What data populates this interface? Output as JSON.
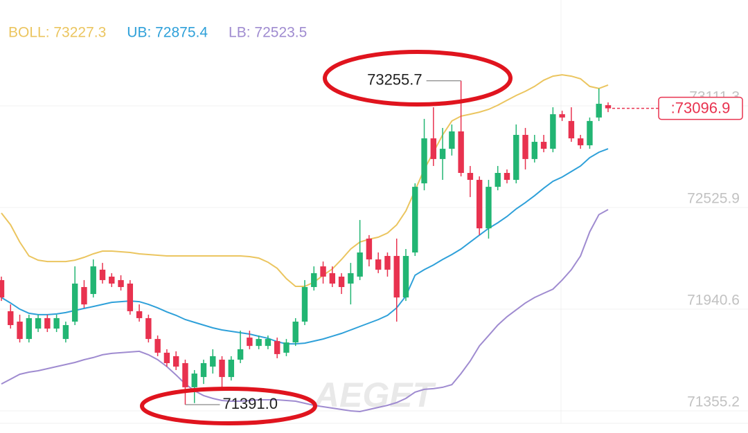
{
  "chart_data": {
    "type": "candlestick",
    "legend": [
      "BOLL: 73227.3",
      "UB: 72875.4",
      "LB: 72523.5"
    ],
    "ylim": [
      71283.5,
      73720.5
    ],
    "yticks": [
      73111.3,
      72525.9,
      71940.6,
      71355.2
    ],
    "grid": true,
    "up_color": "#22b573",
    "down_color": "#e8324f",
    "open": [
      72108,
      71929,
      71869,
      71769,
      71829,
      71889,
      71829,
      71769,
      71869,
      72068,
      72028,
      72168,
      72128,
      72108,
      72088,
      71929,
      71889,
      71769,
      71690,
      71670,
      71630,
      71491,
      71550,
      71610,
      71650,
      71550,
      71650,
      71777,
      71729,
      71729,
      71757,
      71690,
      71749,
      71869,
      72068,
      72187,
      72148,
      72128,
      72088,
      72128,
      72347,
      72227,
      72247,
      72247,
      72008,
      72267,
      72665,
      72924,
      72805,
      72864,
      72964,
      72725,
      72685,
      72406,
      72645,
      72725,
      72685,
      72944,
      72805,
      72904,
      72864,
      73063,
      73024,
      72924,
      72884,
      73044,
      73115
    ],
    "high": [
      72128,
      71968,
      71909,
      71909,
      71909,
      71909,
      71909,
      71869,
      72187,
      72108,
      72227,
      72207,
      72148,
      72136,
      72108,
      71968,
      71909,
      71789,
      71710,
      71698,
      71650,
      71590,
      71650,
      71710,
      71670,
      71670,
      71817,
      71817,
      71789,
      71789,
      71777,
      71769,
      71889,
      72108,
      72187,
      72215,
      72187,
      72148,
      72207,
      72454,
      72367,
      72267,
      72267,
      72347,
      72287,
      72665,
      73036,
      73103,
      72984,
      73004,
      73255.7,
      72765,
      72705,
      72685,
      72765,
      72745,
      73004,
      72984,
      72944,
      72944,
      73103,
      73083,
      73103,
      72944,
      73044,
      73211,
      73131
    ],
    "low": [
      71988,
      71829,
      71749,
      71749,
      71809,
      71809,
      71809,
      71749,
      71849,
      71948,
      72008,
      72088,
      72068,
      72048,
      71909,
      71869,
      71749,
      71670,
      71610,
      71590,
      71391.0,
      71400,
      71510,
      71570,
      71471,
      71530,
      71630,
      71710,
      71710,
      71710,
      71658,
      71670,
      71729,
      71849,
      72048,
      72088,
      72068,
      72028,
      71968,
      72108,
      72187,
      72148,
      72128,
      71869,
      71988,
      72247,
      72625,
      72765,
      72685,
      72825,
      72705,
      72586,
      72367,
      72347,
      72625,
      72665,
      72665,
      72745,
      72785,
      72844,
      72844,
      73024,
      72904,
      72864,
      72864,
      73024,
      73075
    ],
    "close": [
      72008,
      71849,
      71769,
      71889,
      71889,
      71829,
      71889,
      71849,
      72088,
      71968,
      72187,
      72108,
      72088,
      72068,
      71929,
      71889,
      71769,
      71690,
      71630,
      71610,
      71491,
      71570,
      71630,
      71670,
      71550,
      71650,
      71710,
      71729,
      71769,
      71769,
      71682,
      71749,
      71869,
      72068,
      72148,
      72128,
      72088,
      72068,
      72148,
      72267,
      72227,
      72168,
      72168,
      72008,
      72247,
      72645,
      72924,
      72805,
      72864,
      72964,
      72725,
      72685,
      72406,
      72645,
      72725,
      72685,
      72944,
      72805,
      72904,
      72864,
      73063,
      73044,
      72924,
      72884,
      73024,
      73123,
      73096.9
    ],
    "series": [
      {
        "color": "#ebc55f",
        "values": [
          72494,
          72426,
          72327,
          72247,
          72223,
          72215,
          72215,
          72215,
          72223,
          72239,
          72259,
          72275,
          72275,
          72271,
          72267,
          72259,
          72255,
          72251,
          72247,
          72247,
          72247,
          72247,
          72247,
          72247,
          72247,
          72247,
          72247,
          72243,
          72235,
          72211,
          72176,
          72116,
          72072,
          72072,
          72096,
          72136,
          72172,
          72227,
          72287,
          72327,
          72343,
          72355,
          72379,
          72426,
          72506,
          72625,
          72745,
          72844,
          72944,
          73024,
          73052,
          73063,
          73075,
          73091,
          73115,
          73143,
          73171,
          73195,
          73223,
          73259,
          73282,
          73290,
          73282,
          73267,
          73223,
          73211,
          73231
        ]
      },
      {
        "color": "#2ea0d9",
        "values": [
          72008,
          71976,
          71941,
          71917,
          71909,
          71909,
          71913,
          71921,
          71933,
          71945,
          71956,
          71968,
          71980,
          71984,
          71988,
          71984,
          71968,
          71948,
          71925,
          71905,
          71881,
          71865,
          71849,
          71833,
          71821,
          71813,
          71805,
          71797,
          71785,
          71773,
          71753,
          71741,
          71741,
          71745,
          71757,
          71769,
          71785,
          71801,
          71821,
          71841,
          71861,
          71881,
          71905,
          71948,
          72016,
          72136,
          72168,
          72195,
          72227,
          72255,
          72287,
          72327,
          72367,
          72406,
          72438,
          72474,
          72518,
          72554,
          72594,
          72637,
          72677,
          72701,
          72733,
          72765,
          72813,
          72844,
          72864
        ]
      },
      {
        "color": "#9f8bd0",
        "values": [
          71510,
          71538,
          71566,
          71578,
          71586,
          71598,
          71610,
          71622,
          71634,
          71650,
          71662,
          71678,
          71686,
          71690,
          71694,
          71698,
          71678,
          71650,
          71610,
          71562,
          71510,
          71471,
          71443,
          71427,
          71415,
          71411,
          71411,
          71415,
          71419,
          71419,
          71419,
          71415,
          71411,
          71399,
          71387,
          71379,
          71371,
          71363,
          71355,
          71351,
          71363,
          71375,
          71387,
          71403,
          71427,
          71463,
          71479,
          71483,
          71491,
          71506,
          71570,
          71642,
          71729,
          71789,
          71849,
          71897,
          71937,
          71976,
          72008,
          72032,
          72056,
          72108,
          72168,
          72247,
          72386,
          72485,
          72514
        ]
      }
    ],
    "annotations": [
      {
        "value": 73255.7,
        "label": "73255.7"
      },
      {
        "value": 71391.0,
        "label": "71391.0"
      }
    ],
    "last_price": {
      "value": 73096.9,
      "label": ":73096.9"
    },
    "watermark": "AEGET"
  }
}
